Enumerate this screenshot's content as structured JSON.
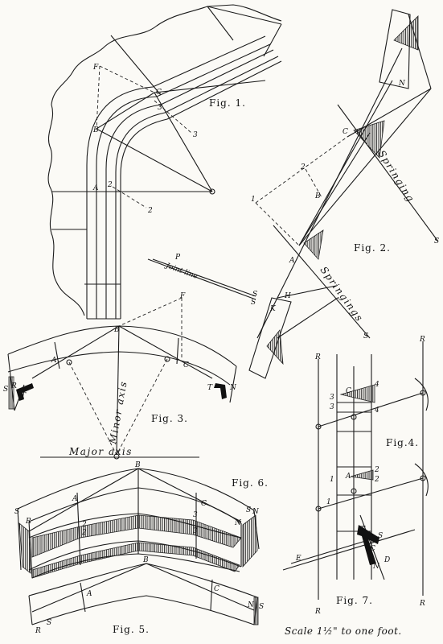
{
  "figures": {
    "fig1": "Fig. 1.",
    "fig2": "Fig. 2.",
    "fig3": "Fig. 3.",
    "fig4": "Fig.4.",
    "fig5": "Fig. 5.",
    "fig6": "Fig. 6.",
    "fig7": "Fig. 7."
  },
  "labels": {
    "springing": "Springing",
    "springings": "Springings",
    "joint_line": "Joint line",
    "minor_axis": "Minor axis",
    "major_axis": "Major axis",
    "scale": "Scale 1½\" to one foot.",
    "A": "A",
    "B": "B",
    "C": "C",
    "F": "F",
    "N": "N",
    "R": "R",
    "S": "S",
    "T": "T",
    "E": "E",
    "D": "D",
    "H": "H",
    "K": "K",
    "P": "P",
    "n1": "1",
    "n2": "2",
    "n3": "3",
    "n4": "4",
    "s_small": "S"
  }
}
